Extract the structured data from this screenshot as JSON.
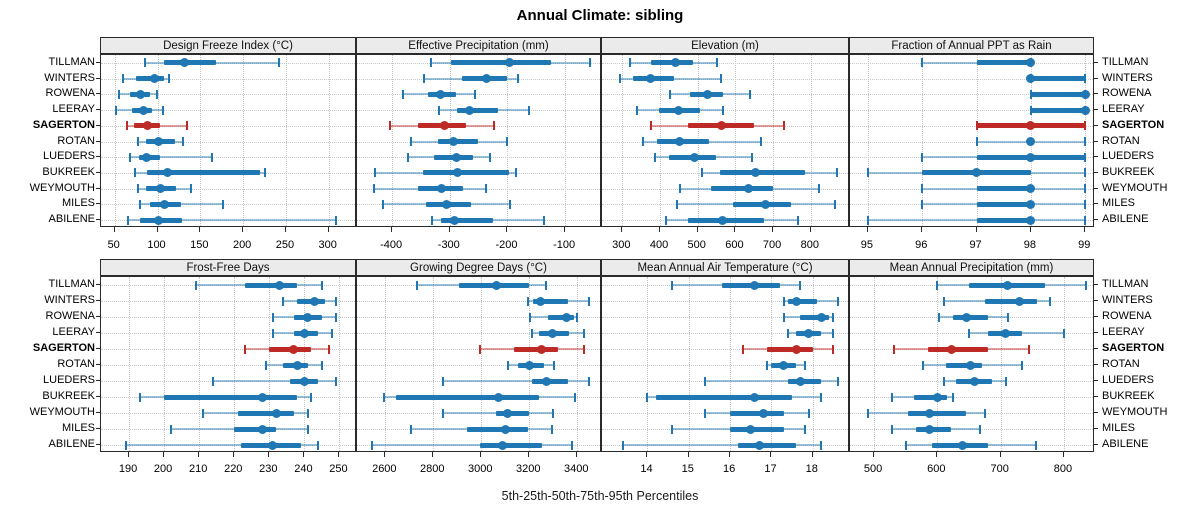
{
  "title": "Annual Climate: sibling",
  "caption": "5th-25th-50th-75th-95th Percentiles",
  "locations": [
    "TILLMAN",
    "WINTERS",
    "ROWENA",
    "LEERAY",
    "SAGERTON",
    "ROTAN",
    "LUEDERS",
    "BUKREEK",
    "WEYMOUTH",
    "MILES",
    "ABILENE"
  ],
  "highlight_location": "SAGERTON",
  "colors": {
    "series": "#1F77B4",
    "highlight": "#BE2B26",
    "strip_bg": "#EBEBEB",
    "grid": "#C9C9C9"
  },
  "chart_data": {
    "type": "dotplot-percentiles",
    "percentile_labels": [
      "5th",
      "25th",
      "50th",
      "75th",
      "95th"
    ],
    "legend_note": "thin line = 5th-95th, thick bar = 25th-75th, dot = 50th",
    "panels": [
      {
        "strip": "Design Freeze Index (°C)",
        "xlim": [
          34,
          333
        ],
        "ticks": [
          50,
          100,
          150,
          200,
          250,
          300
        ],
        "values": [
          [
            85,
            107,
            132,
            168,
            242
          ],
          [
            60,
            75,
            96,
            108,
            114
          ],
          [
            55,
            68,
            80,
            91,
            99
          ],
          [
            52,
            70,
            84,
            94,
            106
          ],
          [
            64,
            72,
            88,
            103,
            135
          ],
          [
            77,
            87,
            101,
            120,
            130
          ],
          [
            68,
            78,
            87,
            103,
            164
          ],
          [
            74,
            88,
            112,
            220,
            226
          ],
          [
            77,
            87,
            103,
            122,
            139
          ],
          [
            80,
            91,
            108,
            128,
            177
          ],
          [
            66,
            80,
            101,
            129,
            309
          ]
        ]
      },
      {
        "strip": "Effective Precipitation (mm)",
        "xlim": [
          -461,
          -36
        ],
        "ticks": [
          -400,
          -300,
          -200,
          -100
        ],
        "values": [
          [
            -333,
            -298,
            -196,
            -125,
            -57
          ],
          [
            -344,
            -278,
            -237,
            -200,
            -182
          ],
          [
            -381,
            -338,
            -317,
            -289,
            -257
          ],
          [
            -318,
            -288,
            -266,
            -216,
            -163
          ],
          [
            -403,
            -355,
            -310,
            -272,
            -224
          ],
          [
            -368,
            -321,
            -293,
            -251,
            -201
          ],
          [
            -373,
            -327,
            -289,
            -260,
            -231
          ],
          [
            -429,
            -347,
            -286,
            -197,
            -185
          ],
          [
            -431,
            -355,
            -315,
            -277,
            -237
          ],
          [
            -416,
            -341,
            -305,
            -263,
            -195
          ],
          [
            -331,
            -315,
            -292,
            -225,
            -136
          ]
        ]
      },
      {
        "strip": "Elevation (m)",
        "xlim": [
          246,
          904
        ],
        "ticks": [
          300,
          400,
          500,
          600,
          700,
          800
        ],
        "values": [
          [
            321,
            376,
            440,
            487,
            552
          ],
          [
            294,
            327,
            374,
            437,
            563
          ],
          [
            426,
            480,
            526,
            568,
            638
          ],
          [
            338,
            398,
            449,
            506,
            567
          ],
          [
            376,
            474,
            563,
            650,
            728
          ],
          [
            354,
            392,
            451,
            530,
            668
          ],
          [
            387,
            424,
            492,
            548,
            644
          ],
          [
            510,
            560,
            653,
            785,
            869
          ],
          [
            452,
            534,
            634,
            700,
            822
          ],
          [
            444,
            594,
            681,
            748,
            865
          ],
          [
            417,
            473,
            567,
            675,
            765
          ]
        ]
      },
      {
        "strip": "Fraction of Annual PPT as Rain",
        "xlim": [
          94.67,
          99.18
        ],
        "ticks": [
          95,
          96,
          97,
          98,
          99
        ],
        "values": [
          [
            96,
            97,
            98,
            98,
            98
          ],
          [
            98,
            98,
            98,
            99,
            99
          ],
          [
            98,
            98,
            99,
            99,
            99
          ],
          [
            98,
            98,
            99,
            99,
            99
          ],
          [
            97,
            97,
            98,
            99,
            99
          ],
          [
            97,
            98,
            98,
            98,
            99
          ],
          [
            96,
            97,
            98,
            99,
            99
          ],
          [
            95,
            96,
            97,
            98,
            99
          ],
          [
            96,
            97,
            98,
            98,
            99
          ],
          [
            96,
            97,
            98,
            98,
            99
          ],
          [
            95,
            97,
            98,
            98,
            99
          ]
        ]
      },
      {
        "strip": "Frost-Free Days",
        "xlim": [
          182,
          255
        ],
        "ticks": [
          190,
          200,
          210,
          220,
          230,
          240,
          250
        ],
        "values": [
          [
            209,
            223,
            233,
            238,
            245
          ],
          [
            234,
            238,
            243,
            246,
            249
          ],
          [
            231,
            237,
            241,
            245,
            249
          ],
          [
            231,
            237,
            240,
            244,
            248
          ],
          [
            223,
            230,
            237,
            242,
            247
          ],
          [
            229,
            234,
            238,
            241,
            245
          ],
          [
            214,
            236,
            240,
            244,
            249
          ],
          [
            193,
            200,
            228,
            238,
            242
          ],
          [
            211,
            221,
            232,
            237,
            241
          ],
          [
            202,
            220,
            228,
            232,
            241
          ],
          [
            189,
            222,
            231,
            239,
            244
          ]
        ]
      },
      {
        "strip": "Growing Degree Days (°C)",
        "xlim": [
          2482,
          3503
        ],
        "ticks": [
          2600,
          2800,
          3000,
          3200,
          3400
        ],
        "values": [
          [
            2730,
            2905,
            3065,
            3200,
            3270
          ],
          [
            3195,
            3215,
            3245,
            3360,
            3448
          ],
          [
            3205,
            3280,
            3355,
            3385,
            3400
          ],
          [
            3210,
            3240,
            3295,
            3365,
            3430
          ],
          [
            2995,
            3135,
            3250,
            3320,
            3430
          ],
          [
            3110,
            3155,
            3200,
            3260,
            3305
          ],
          [
            2840,
            3210,
            3270,
            3360,
            3448
          ],
          [
            2595,
            2645,
            3070,
            3240,
            3390
          ],
          [
            2840,
            3060,
            3110,
            3200,
            3300
          ],
          [
            2705,
            2940,
            3100,
            3195,
            3295
          ],
          [
            2545,
            2995,
            3090,
            3255,
            3380
          ]
        ]
      },
      {
        "strip": "Mean Annual Air Temperature (°C)",
        "xlim": [
          12.9,
          18.9
        ],
        "ticks": [
          14,
          15,
          16,
          17,
          18
        ],
        "values": [
          [
            14.6,
            15.8,
            16.6,
            17.2,
            17.7
          ],
          [
            17.3,
            17.4,
            17.6,
            18.1,
            18.6
          ],
          [
            17.3,
            17.7,
            18.2,
            18.4,
            18.5
          ],
          [
            17.4,
            17.6,
            17.9,
            18.2,
            18.5
          ],
          [
            16.3,
            16.9,
            17.6,
            18.0,
            18.5
          ],
          [
            16.9,
            17.0,
            17.3,
            17.6,
            17.8
          ],
          [
            15.4,
            17.4,
            17.7,
            18.2,
            18.6
          ],
          [
            14.0,
            14.2,
            16.6,
            17.5,
            18.2
          ],
          [
            15.4,
            16.0,
            16.8,
            17.3,
            17.9
          ],
          [
            14.6,
            16.0,
            16.5,
            17.3,
            17.8
          ],
          [
            13.4,
            16.2,
            16.7,
            17.6,
            18.2
          ]
        ]
      },
      {
        "strip": "Mean Annual Precipitation (mm)",
        "xlim": [
          462,
          849
        ],
        "ticks": [
          500,
          600,
          700,
          800
        ],
        "values": [
          [
            600,
            650,
            710,
            770,
            835
          ],
          [
            610,
            675,
            730,
            758,
            778
          ],
          [
            603,
            625,
            646,
            680,
            712
          ],
          [
            650,
            680,
            707,
            734,
            800
          ],
          [
            532,
            585,
            622,
            680,
            744
          ],
          [
            577,
            613,
            652,
            671,
            733
          ],
          [
            610,
            630,
            658,
            687,
            708
          ],
          [
            528,
            563,
            600,
            615,
            625
          ],
          [
            490,
            553,
            588,
            645,
            676
          ],
          [
            529,
            566,
            588,
            622,
            668
          ],
          [
            551,
            592,
            640,
            680,
            756
          ]
        ]
      }
    ]
  }
}
